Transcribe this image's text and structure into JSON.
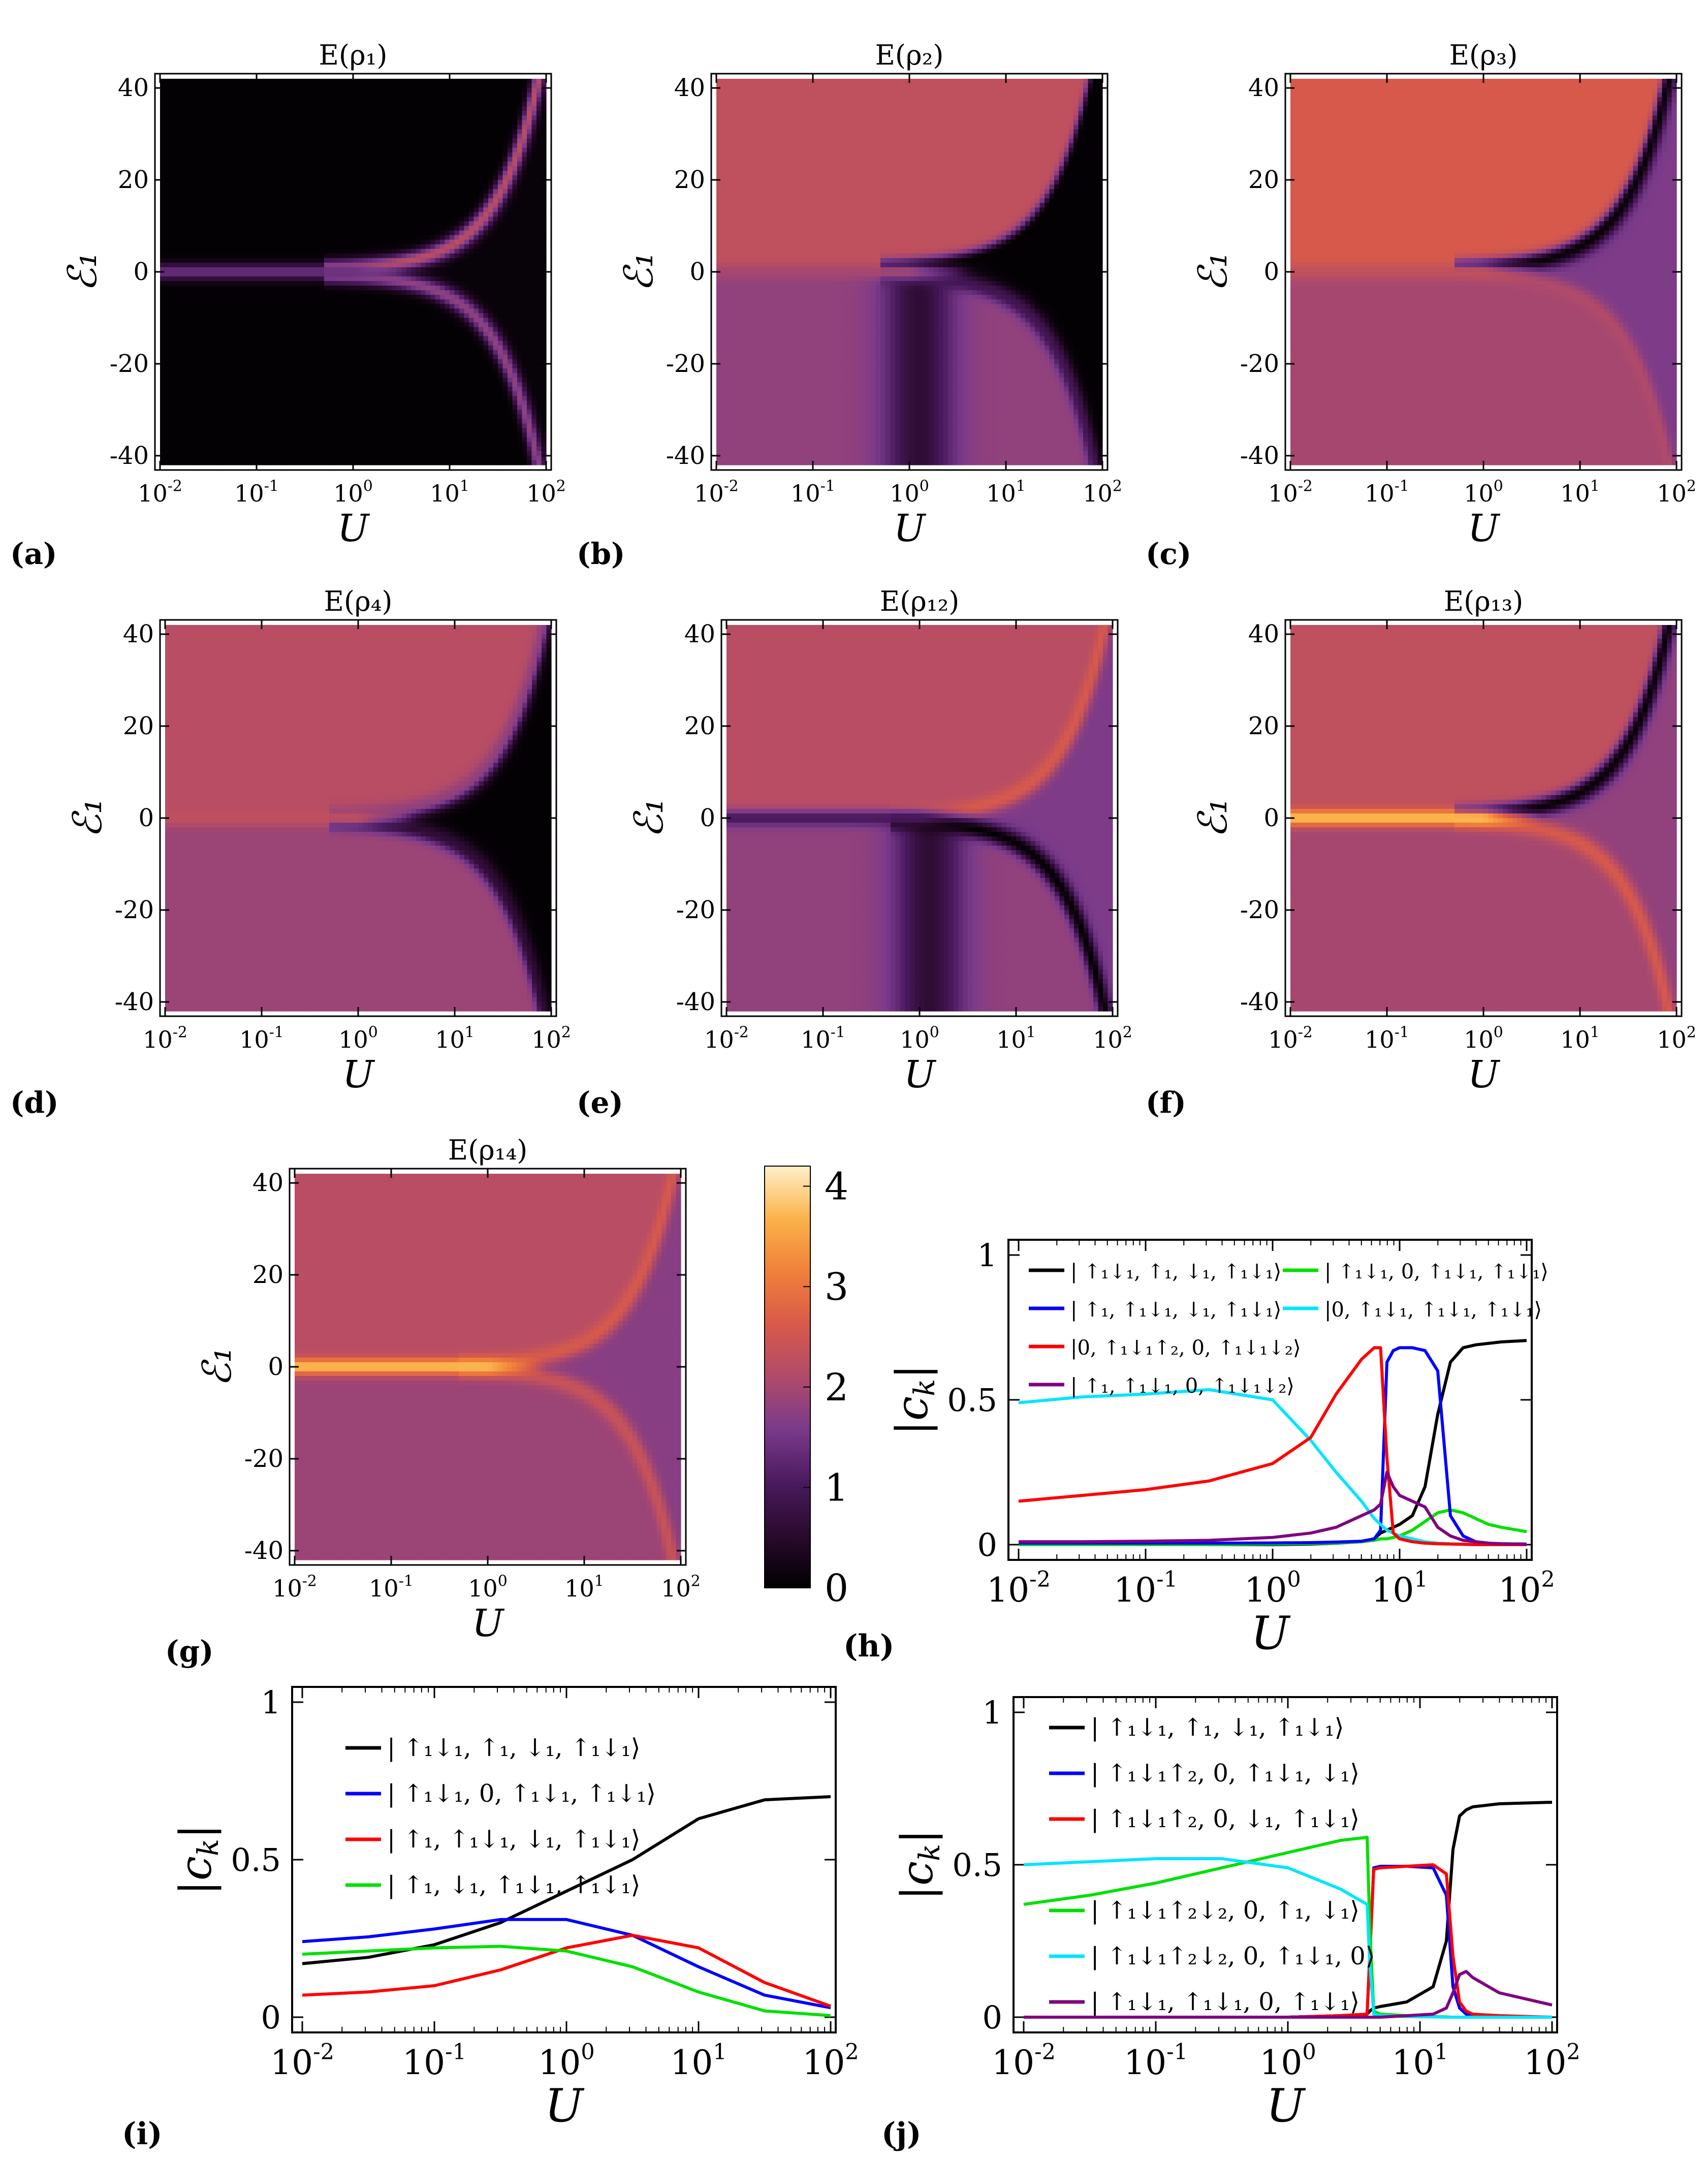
{
  "figure": {
    "colors": {
      "cmap": [
        "#000000",
        "#2a0a2e",
        "#4a1a5e",
        "#7a3a8a",
        "#b04a6a",
        "#d85a4a",
        "#f0803a",
        "#fbb24a",
        "#fff0c8"
      ],
      "black": "#000000",
      "blue": "#0000ff",
      "red": "#ff0000",
      "green": "#00e000",
      "cyan": "#00e5ff",
      "purple": "#800080"
    },
    "heatmaps": [
      {
        "tag": "(a)",
        "title": "E(ρ₁)",
        "ylabel": "ℰ₁",
        "xlabel": "U",
        "base_top": 0.05,
        "base_bot": 0.05,
        "split": 0,
        "dip_center": 0,
        "dip_depth": 0,
        "in_fan_value": 0.1,
        "upper_branch_value": 2.2,
        "lower_branch_value": 1.8,
        "center_line_value": 1.4
      },
      {
        "tag": "(b)",
        "title": "E(ρ₂)",
        "ylabel": "ℰ₁",
        "xlabel": "U",
        "base_top": 2.3,
        "base_bot": 1.8,
        "split": 1,
        "dip_center": 0.1,
        "dip_depth": 1.2,
        "in_fan_value": 0.05,
        "upper_branch_value": 0.05,
        "lower_branch_value": 0.9,
        "center_line_value": 2.0
      },
      {
        "tag": "(c)",
        "title": "E(ρ₃)",
        "ylabel": "ℰ₁",
        "xlabel": "U",
        "base_top": 2.6,
        "base_bot": 2.0,
        "split": 1,
        "dip_center": 0,
        "dip_depth": 0,
        "in_fan_value": 1.6,
        "upper_branch_value": 0.1,
        "lower_branch_value": 2.1,
        "center_line_value": 2.3
      },
      {
        "tag": "(d)",
        "title": "E(ρ₄)",
        "ylabel": "ℰ₁",
        "xlabel": "U",
        "base_top": 2.2,
        "base_bot": 1.9,
        "split": 1,
        "dip_center": 0,
        "dip_depth": 0,
        "in_fan_value": 0.05,
        "upper_branch_value": 1.8,
        "lower_branch_value": 0.6,
        "center_line_value": 2.3
      },
      {
        "tag": "(e)",
        "title": "E(ρ₁₂)",
        "ylabel": "ℰ₁",
        "xlabel": "U",
        "base_top": 2.2,
        "base_bot": 1.8,
        "split": 1,
        "dip_center": 0.1,
        "dip_depth": 1.2,
        "in_fan_value": 1.6,
        "upper_branch_value": 2.6,
        "lower_branch_value": 0.05,
        "center_line_value": 1.0
      },
      {
        "tag": "(f)",
        "title": "E(ρ₁₃)",
        "ylabel": "ℰ₁",
        "xlabel": "U",
        "base_top": 2.3,
        "base_bot": 2.0,
        "split": 0,
        "dip_center": 0,
        "dip_depth": 0,
        "in_fan_value": 1.8,
        "upper_branch_value": 0.1,
        "lower_branch_value": 2.6,
        "center_line_value": 3.8
      },
      {
        "tag": "(g)",
        "title": "E(ρ₁₄)",
        "ylabel": "ℰ₁",
        "xlabel": "U",
        "base_top": 2.2,
        "base_bot": 1.9,
        "split": 0,
        "dip_center": 0,
        "dip_depth": 0,
        "in_fan_value": 1.7,
        "upper_branch_value": 2.6,
        "lower_branch_value": 2.4,
        "center_line_value": 3.8
      }
    ],
    "heat_axes": {
      "xlim_log10": [
        -2,
        2
      ],
      "ylim": [
        -42,
        42
      ],
      "xticks": [
        {
          "base": "10",
          "exp": "-2"
        },
        {
          "base": "10",
          "exp": "-1"
        },
        {
          "base": "10",
          "exp": "0"
        },
        {
          "base": "10",
          "exp": "1"
        },
        {
          "base": "10",
          "exp": "2"
        }
      ],
      "yticks": [
        "-40",
        "-20",
        "0",
        "20",
        "40"
      ],
      "ytick_values": [
        -40,
        -20,
        0,
        20,
        40
      ]
    },
    "colorbar": {
      "ticks": [
        "0",
        "1",
        "2",
        "3",
        "4"
      ],
      "tick_values": [
        0,
        1,
        2,
        3,
        4
      ],
      "range": [
        0,
        4.2
      ]
    },
    "line_plot_tags": {
      "h": "(h)",
      "i": "(i)",
      "j": "(j)"
    }
  },
  "chart_data": [
    {
      "type": "heatmap",
      "panel": "a",
      "title": "E(ρ₁)",
      "xlabel": "U",
      "ylabel": "ℰ₁",
      "xscale": "log",
      "xlim": [
        0.01,
        100
      ],
      "ylim": [
        -40,
        40
      ],
      "colorbar_range": [
        0,
        4.2
      ]
    },
    {
      "type": "heatmap",
      "panel": "b",
      "title": "E(ρ₂)",
      "xlabel": "U",
      "ylabel": "ℰ₁",
      "xscale": "log",
      "xlim": [
        0.01,
        100
      ],
      "ylim": [
        -40,
        40
      ]
    },
    {
      "type": "heatmap",
      "panel": "c",
      "title": "E(ρ₃)",
      "xlabel": "U",
      "ylabel": "ℰ₁",
      "xscale": "log",
      "xlim": [
        0.01,
        100
      ],
      "ylim": [
        -40,
        40
      ]
    },
    {
      "type": "heatmap",
      "panel": "d",
      "title": "E(ρ₄)",
      "xlabel": "U",
      "ylabel": "ℰ₁",
      "xscale": "log",
      "xlim": [
        0.01,
        100
      ],
      "ylim": [
        -40,
        40
      ]
    },
    {
      "type": "heatmap",
      "panel": "e",
      "title": "E(ρ₁₂)",
      "xlabel": "U",
      "ylabel": "ℰ₁",
      "xscale": "log",
      "xlim": [
        0.01,
        100
      ],
      "ylim": [
        -40,
        40
      ]
    },
    {
      "type": "heatmap",
      "panel": "f",
      "title": "E(ρ₁₃)",
      "xlabel": "U",
      "ylabel": "ℰ₁",
      "xscale": "log",
      "xlim": [
        0.01,
        100
      ],
      "ylim": [
        -40,
        40
      ]
    },
    {
      "type": "heatmap",
      "panel": "g",
      "title": "E(ρ₁₄)",
      "xlabel": "U",
      "ylabel": "ℰ₁",
      "xscale": "log",
      "xlim": [
        0.01,
        100
      ],
      "ylim": [
        -40,
        40
      ]
    },
    {
      "type": "line",
      "panel": "h",
      "xlabel": "U",
      "ylabel": "|c_k|",
      "xscale": "log",
      "xlim": [
        0.01,
        100
      ],
      "ylim": [
        0,
        1
      ],
      "xticks": [
        {
          "base": "10",
          "exp": "-2"
        },
        {
          "base": "10",
          "exp": "-1"
        },
        {
          "base": "10",
          "exp": "0"
        },
        {
          "base": "10",
          "exp": "1"
        },
        {
          "base": "10",
          "exp": "2"
        }
      ],
      "yticks": [
        "0",
        "0.5",
        "1"
      ],
      "ytick_values": [
        0,
        0.5,
        1
      ],
      "legend": {
        "placement": "top",
        "columns": 2
      },
      "x_log10": [
        -2,
        -1.5,
        -1,
        -0.5,
        0,
        0.3,
        0.5,
        0.7,
        0.8,
        0.85,
        0.9,
        0.95,
        1.0,
        1.1,
        1.2,
        1.3,
        1.4,
        1.5,
        1.6,
        1.7,
        1.8,
        2.0
      ],
      "series": [
        {
          "name": "| ↑₁↓₁, ↑₁, ↓₁, ↑₁↓₁⟩",
          "color": "black",
          "values": [
            0,
            0,
            0,
            0,
            0,
            0.002,
            0.005,
            0.01,
            0.02,
            0.04,
            0.05,
            0.06,
            0.07,
            0.1,
            0.2,
            0.45,
            0.63,
            0.68,
            0.69,
            0.695,
            0.7,
            0.705
          ]
        },
        {
          "name": "| ↑₁↓₁, 0, ↑₁↓₁, ↑₁↓₁⟩",
          "color": "green",
          "values": [
            0,
            0,
            0,
            0,
            0.002,
            0.004,
            0.006,
            0.01,
            0.015,
            0.02,
            0.02,
            0.025,
            0.03,
            0.05,
            0.08,
            0.11,
            0.12,
            0.11,
            0.09,
            0.07,
            0.06,
            0.045
          ]
        },
        {
          "name": "| ↑₁, ↑₁↓₁, ↓₁, ↑₁↓₁⟩",
          "color": "blue",
          "values": [
            0.005,
            0.005,
            0.005,
            0.005,
            0.006,
            0.007,
            0.009,
            0.012,
            0.02,
            0.05,
            0.63,
            0.67,
            0.68,
            0.68,
            0.67,
            0.6,
            0.1,
            0.03,
            0.01,
            0.005,
            0.003,
            0.002
          ]
        },
        {
          "name": "|0, ↑₁↓₁, ↑₁↓₁, ↑₁↓₁⟩",
          "color": "cyan",
          "values": [
            0.49,
            0.51,
            0.52,
            0.535,
            0.5,
            0.36,
            0.25,
            0.15,
            0.09,
            0.07,
            0.05,
            0.04,
            0.03,
            0.02,
            0.01,
            0.005,
            0.003,
            0.002,
            0.001,
            0.001,
            0,
            0
          ]
        },
        {
          "name": "|0, ↑₁↓₁↑₂, 0, ↑₁↓₁↓₂⟩",
          "color": "red",
          "values": [
            0.15,
            0.17,
            0.19,
            0.22,
            0.28,
            0.37,
            0.52,
            0.64,
            0.68,
            0.68,
            0.3,
            0.04,
            0.02,
            0.01,
            0.005,
            0.003,
            0.002,
            0.001,
            0,
            0,
            0,
            0
          ]
        },
        {
          "name": "| ↑₁, ↑₁↓₁, 0, ↑₁↓₁↓₂⟩",
          "color": "purple",
          "values": [
            0.01,
            0.01,
            0.012,
            0.015,
            0.025,
            0.04,
            0.06,
            0.1,
            0.12,
            0.14,
            0.25,
            0.2,
            0.17,
            0.15,
            0.13,
            0.06,
            0.03,
            0.015,
            0.01,
            0.005,
            0.003,
            0.002
          ]
        }
      ]
    },
    {
      "type": "line",
      "panel": "i",
      "xlabel": "U",
      "ylabel": "|c_k|",
      "xscale": "log",
      "xlim": [
        0.01,
        100
      ],
      "ylim": [
        0,
        1
      ],
      "xticks": [
        {
          "base": "10",
          "exp": "-2"
        },
        {
          "base": "10",
          "exp": "-1"
        },
        {
          "base": "10",
          "exp": "0"
        },
        {
          "base": "10",
          "exp": "1"
        },
        {
          "base": "10",
          "exp": "2"
        }
      ],
      "yticks": [
        "0",
        "0.5",
        "1"
      ],
      "ytick_values": [
        0,
        0.5,
        1
      ],
      "legend": {
        "placement": "top-left",
        "columns": 1
      },
      "x_log10": [
        -2,
        -1.5,
        -1,
        -0.5,
        0,
        0.5,
        1,
        1.5,
        2
      ],
      "series": [
        {
          "name": "| ↑₁↓₁, ↑₁, ↓₁, ↑₁↓₁⟩",
          "color": "black",
          "values": [
            0.17,
            0.19,
            0.23,
            0.3,
            0.4,
            0.5,
            0.63,
            0.69,
            0.7
          ]
        },
        {
          "name": "| ↑₁↓₁, 0, ↑₁↓₁, ↑₁↓₁⟩",
          "color": "blue",
          "values": [
            0.24,
            0.255,
            0.28,
            0.31,
            0.31,
            0.26,
            0.16,
            0.07,
            0.03
          ]
        },
        {
          "name": "| ↑₁, ↑₁↓₁, ↓₁, ↑₁↓₁⟩",
          "color": "red",
          "values": [
            0.07,
            0.08,
            0.1,
            0.15,
            0.22,
            0.26,
            0.22,
            0.11,
            0.035
          ]
        },
        {
          "name": "| ↑₁, ↓₁, ↑₁↓₁, ↑₁↓₁⟩",
          "color": "green",
          "values": [
            0.2,
            0.21,
            0.22,
            0.225,
            0.21,
            0.16,
            0.08,
            0.02,
            0.005
          ]
        }
      ]
    },
    {
      "type": "line",
      "panel": "j",
      "xlabel": "U",
      "ylabel": "|c_k|",
      "xscale": "log",
      "xlim": [
        0.01,
        100
      ],
      "ylim": [
        0,
        1
      ],
      "xticks": [
        {
          "base": "10",
          "exp": "-2"
        },
        {
          "base": "10",
          "exp": "-1"
        },
        {
          "base": "10",
          "exp": "0"
        },
        {
          "base": "10",
          "exp": "1"
        },
        {
          "base": "10",
          "exp": "2"
        }
      ],
      "yticks": [
        "0",
        "0.5",
        "1"
      ],
      "ytick_values": [
        0,
        0.5,
        1
      ],
      "legend": {
        "placement": "left",
        "columns": 1
      },
      "x_log10": [
        -2,
        -1.5,
        -1,
        -0.5,
        0,
        0.4,
        0.6,
        0.62,
        0.65,
        0.7,
        0.9,
        1.1,
        1.2,
        1.25,
        1.3,
        1.35,
        1.4,
        1.6,
        2.0
      ],
      "series": [
        {
          "name": "| ↑₁↓₁, ↑₁, ↓₁, ↑₁↓₁⟩",
          "color": "black",
          "values": [
            0,
            0,
            0,
            0,
            0,
            0.005,
            0.01,
            0.02,
            0.03,
            0.035,
            0.05,
            0.1,
            0.25,
            0.55,
            0.66,
            0.68,
            0.69,
            0.7,
            0.705
          ]
        },
        {
          "name": "| ↑₁↓₁↑₂, 0, ↑₁↓₁, ↓₁⟩",
          "color": "blue",
          "values": [
            0,
            0,
            0,
            0,
            0,
            0.005,
            0.01,
            0.2,
            0.49,
            0.495,
            0.495,
            0.49,
            0.4,
            0.1,
            0.03,
            0.01,
            0.005,
            0.002,
            0
          ]
        },
        {
          "name": "| ↑₁↓₁↑₂, 0, ↓₁, ↑₁↓₁⟩",
          "color": "red",
          "values": [
            0,
            0,
            0,
            0,
            0,
            0.005,
            0.01,
            0.2,
            0.485,
            0.49,
            0.495,
            0.5,
            0.47,
            0.2,
            0.05,
            0.02,
            0.01,
            0.005,
            0
          ]
        },
        {
          "name": "| ↑₁↓₁↑₂↓₂, 0, ↑₁, ↓₁⟩",
          "color": "green",
          "values": [
            0.37,
            0.4,
            0.44,
            0.49,
            0.54,
            0.58,
            0.59,
            0.3,
            0.02,
            0.01,
            0.005,
            0.002,
            0.001,
            0,
            0,
            0,
            0,
            0,
            0
          ]
        },
        {
          "name": "| ↑₁↓₁↑₂↓₂, 0, ↑₁↓₁, 0⟩",
          "color": "cyan",
          "values": [
            0.5,
            0.51,
            0.52,
            0.52,
            0.49,
            0.42,
            0.37,
            0.18,
            0.01,
            0.005,
            0.002,
            0.001,
            0,
            0,
            0,
            0,
            0,
            0,
            0
          ]
        },
        {
          "name": "| ↑₁↓₁, ↑₁↓₁, 0, ↑₁↓₁⟩",
          "color": "purple",
          "values": [
            0,
            0,
            0,
            0,
            0,
            0,
            0,
            0,
            0,
            0,
            0.005,
            0.01,
            0.03,
            0.08,
            0.14,
            0.15,
            0.13,
            0.08,
            0.04
          ]
        }
      ]
    }
  ]
}
